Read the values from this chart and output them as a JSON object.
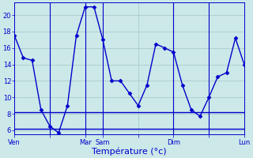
{
  "background_color": "#cce8e8",
  "grid_color": "#aacccc",
  "line_color": "#0000cc",
  "xlabel": "Température (°c)",
  "ylim": [
    5.5,
    21.5
  ],
  "yticks": [
    6,
    8,
    10,
    12,
    14,
    16,
    18,
    20
  ],
  "ytick_labels": [
    "6",
    "8",
    "10",
    "12",
    "14",
    "16",
    "18",
    "20"
  ],
  "n_points": 27,
  "xtick_labels": [
    "Ven",
    "",
    "Mar",
    "Sam",
    "",
    "Dim",
    "",
    "Lun"
  ],
  "xtick_positions": [
    0,
    4,
    8,
    10,
    14,
    18,
    22,
    26
  ],
  "vlines_x": [
    4,
    8,
    10,
    18,
    22
  ],
  "line1_y": [
    17.5,
    14.8,
    14.5,
    8.5,
    6.5,
    5.7,
    9.0,
    17.5,
    21.0,
    21.0,
    17.0,
    12.0,
    12.0,
    10.5,
    9.0,
    11.5,
    16.5,
    16.0,
    15.5,
    11.5,
    8.5,
    7.7,
    10.0,
    12.5,
    13.0,
    17.2,
    14.0
  ],
  "line2_y_const": 8.2,
  "line3_y_const": 6.2,
  "marker": "D",
  "markersize": 2.5,
  "linewidth": 1.0,
  "flat_linewidth": 1.0,
  "vline_linewidth": 0.8,
  "tick_fontsize": 6,
  "xlabel_fontsize": 8
}
